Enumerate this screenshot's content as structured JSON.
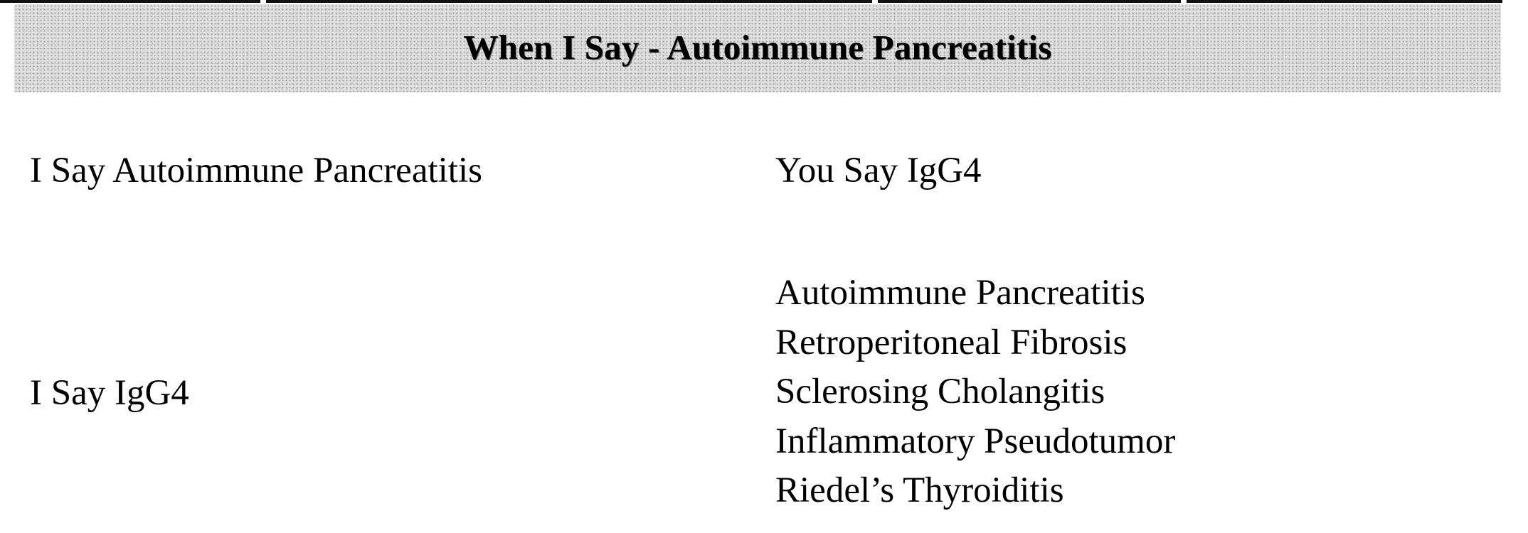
{
  "header": {
    "title": "When I Say - Autoimmune Pancreatitis"
  },
  "rows": [
    {
      "left": "I Say Autoimmune Pancreatitis",
      "right": "You Say IgG4"
    },
    {
      "left": "I Say IgG4",
      "right_list": [
        "Autoimmune Pancreatitis",
        "Retroperitoneal Fibrosis",
        "Sclerosing Cholangitis",
        "Inflammatory Pseudotumor",
        "Riedel’s Thyroiditis"
      ]
    }
  ]
}
